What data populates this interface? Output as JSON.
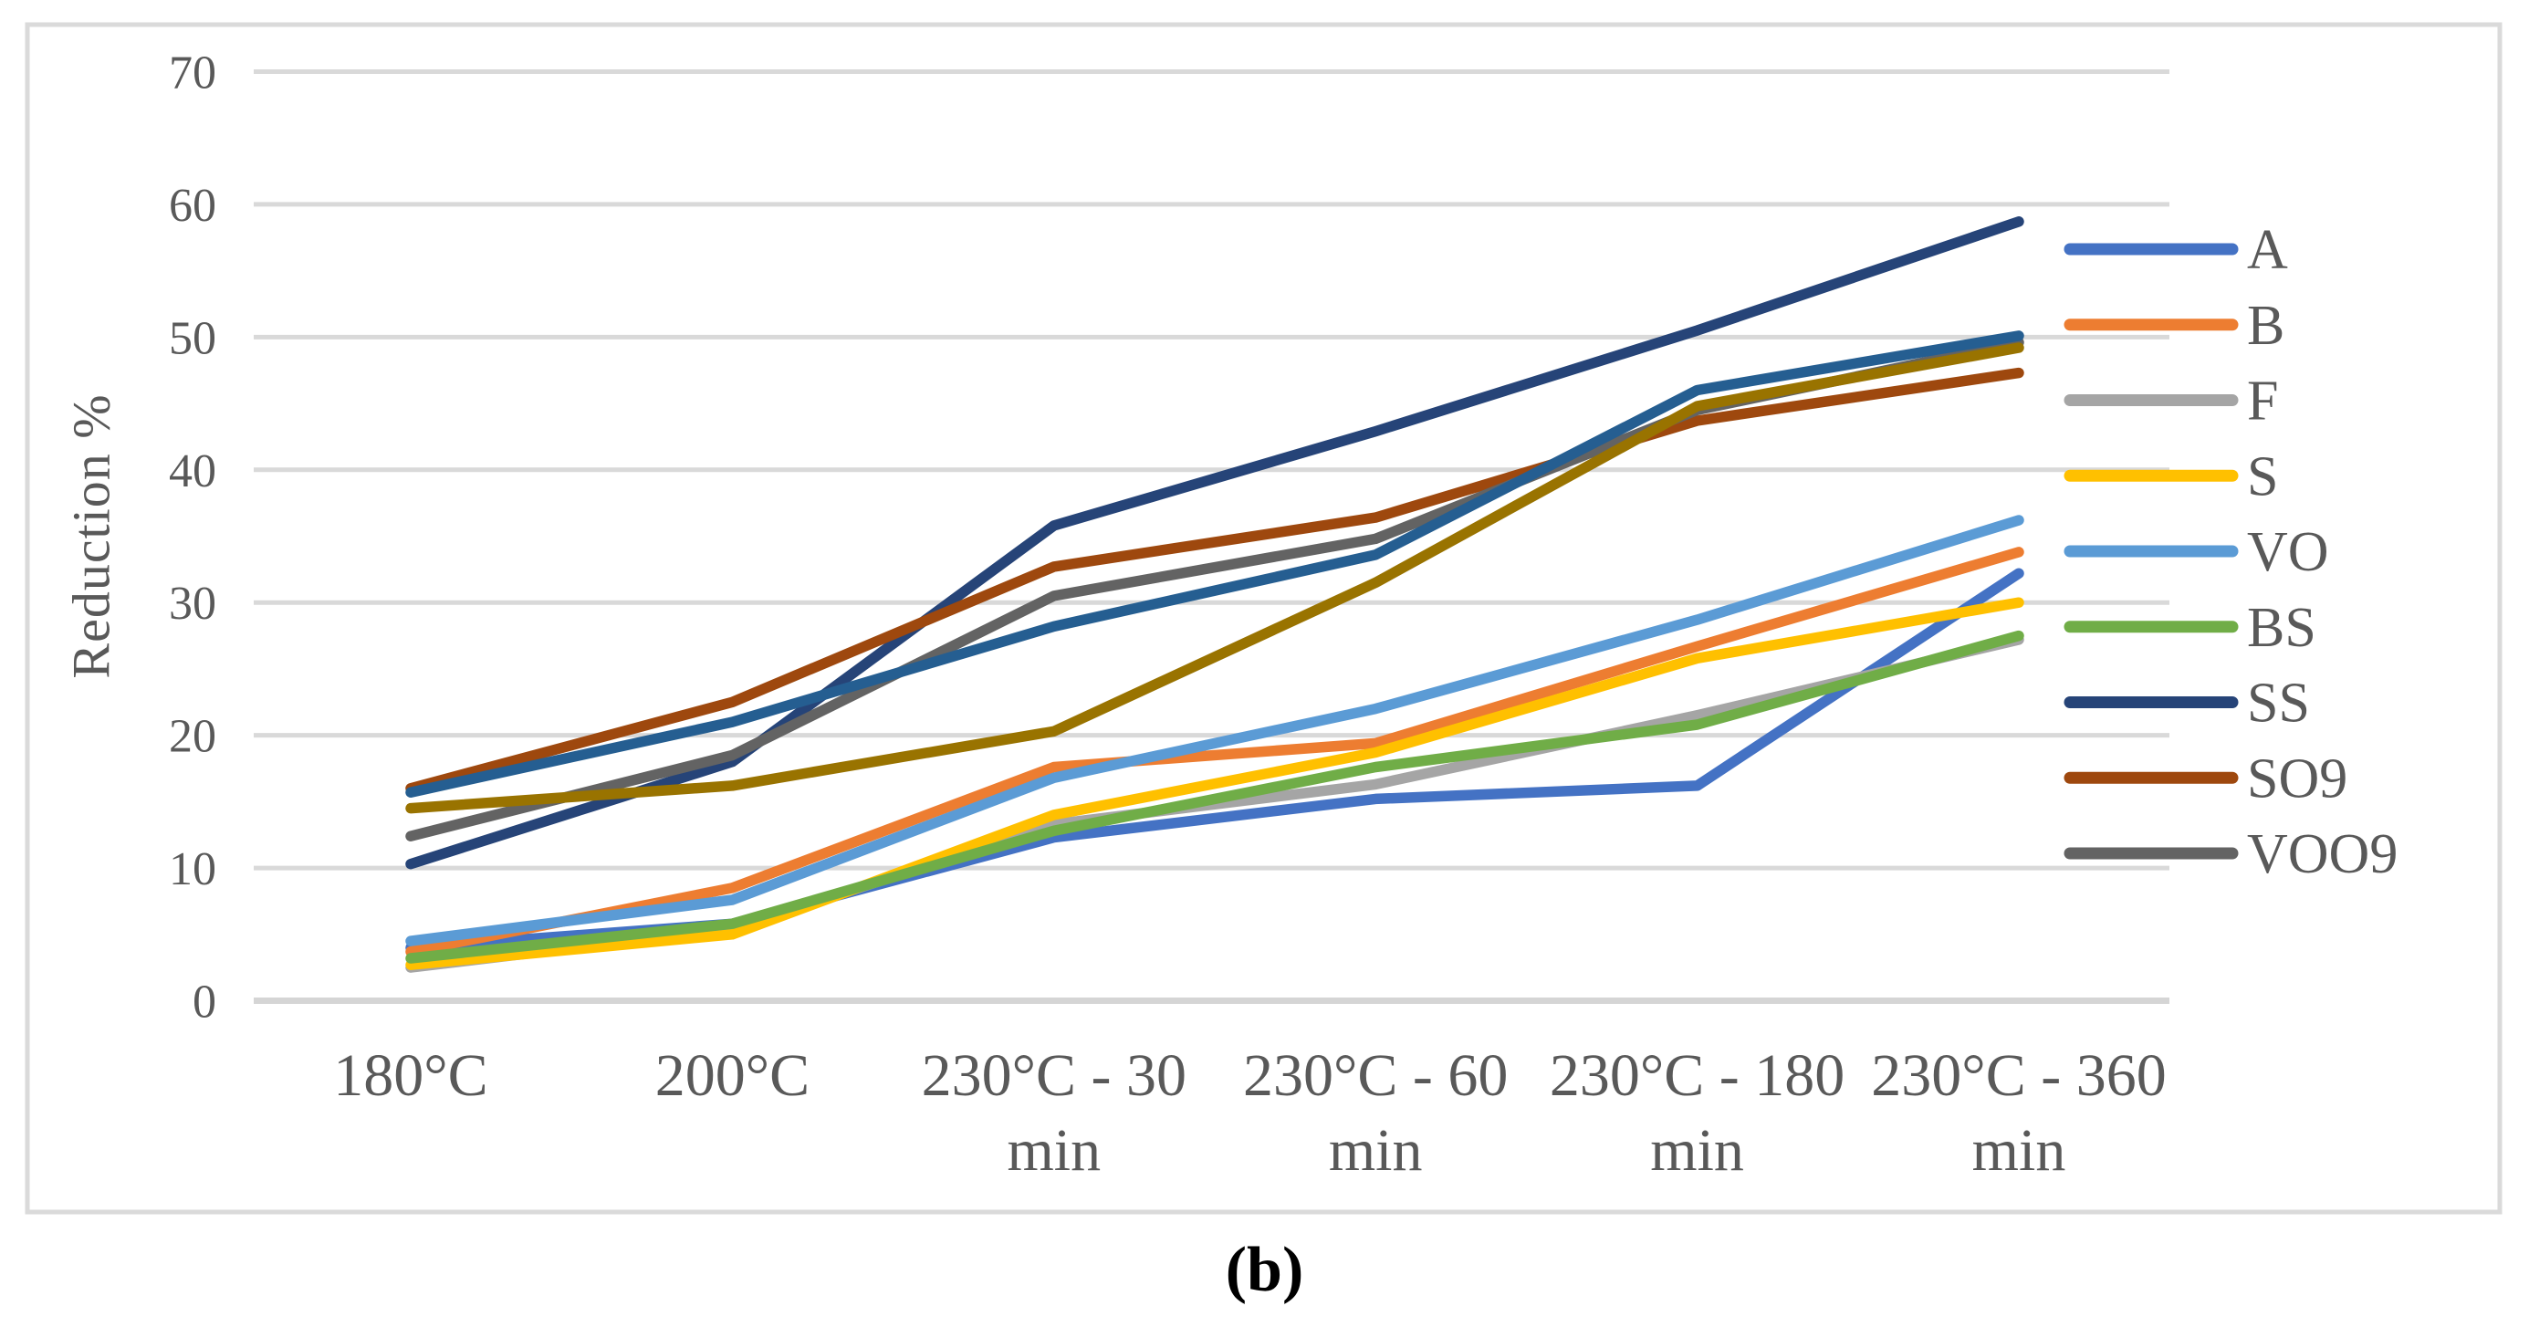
{
  "figure": {
    "caption": "(b)",
    "y_axis_title": "Reduction %",
    "y_ticks": [
      "0",
      "10",
      "20",
      "30",
      "40",
      "50",
      "60",
      "70"
    ],
    "x_labels": [
      [
        "180°C"
      ],
      [
        "200°C"
      ],
      [
        "230°C - 30",
        "min"
      ],
      [
        "230°C - 60",
        "min"
      ],
      [
        "230°C - 180",
        "min"
      ],
      [
        "230°C - 360",
        "min"
      ]
    ],
    "legend": [
      {
        "label": "A",
        "color": "#4472C4"
      },
      {
        "label": "B",
        "color": "#ED7D31"
      },
      {
        "label": "F",
        "color": "#A5A5A5"
      },
      {
        "label": "S",
        "color": "#FFC000"
      },
      {
        "label": "VO",
        "color": "#5B9BD5"
      },
      {
        "label": "BS",
        "color": "#70AD47"
      },
      {
        "label": "SS",
        "color": "#264478"
      },
      {
        "label": "SO9",
        "color": "#9E480E"
      },
      {
        "label": "VOO9",
        "color": "#636363"
      }
    ],
    "colors": {
      "grid": "#D9D9D9",
      "axis_line": "#D5D5D5",
      "frame": "#DADADA",
      "axis_text": "#595959",
      "caption_text": "#000000",
      "background": "#FFFFFF"
    }
  },
  "chart_data": {
    "type": "line",
    "title": "",
    "xlabel": "",
    "ylabel": "Reduction %",
    "ylim": [
      0,
      70
    ],
    "y_tick_step": 10,
    "grid": "horizontal-major",
    "legend_position": "right",
    "categories": [
      "180°C",
      "200°C",
      "230°C - 30 min",
      "230°C - 60 min",
      "230°C - 180 min",
      "230°C - 360 min"
    ],
    "series": [
      {
        "id": "A",
        "name": "A",
        "color": "#4472C4",
        "in_legend": true,
        "values": [
          4.0,
          5.8,
          12.3,
          15.2,
          16.2,
          32.2
        ]
      },
      {
        "id": "B",
        "name": "B",
        "color": "#ED7D31",
        "in_legend": true,
        "values": [
          3.7,
          8.5,
          17.6,
          19.4,
          26.7,
          33.8
        ]
      },
      {
        "id": "F",
        "name": "F",
        "color": "#A5A5A5",
        "in_legend": true,
        "values": [
          2.5,
          5.4,
          13.3,
          16.3,
          21.5,
          27.2
        ]
      },
      {
        "id": "S",
        "name": "S",
        "color": "#FFC000",
        "in_legend": true,
        "values": [
          2.7,
          5.0,
          14.0,
          18.7,
          25.8,
          30.0
        ]
      },
      {
        "id": "VO",
        "name": "VO",
        "color": "#5B9BD5",
        "in_legend": true,
        "values": [
          4.5,
          7.6,
          16.8,
          22.0,
          28.7,
          36.2
        ]
      },
      {
        "id": "BS",
        "name": "BS",
        "color": "#70AD47",
        "in_legend": true,
        "values": [
          3.2,
          5.8,
          12.8,
          17.6,
          20.8,
          27.5
        ]
      },
      {
        "id": "SS",
        "name": "SS",
        "color": "#264478",
        "in_legend": true,
        "values": [
          10.3,
          18.0,
          35.8,
          42.9,
          50.5,
          58.7
        ]
      },
      {
        "id": "SO9",
        "name": "SO9",
        "color": "#9E480E",
        "in_legend": true,
        "values": [
          16.0,
          22.5,
          32.7,
          36.4,
          43.7,
          47.3
        ]
      },
      {
        "id": "VOO9",
        "name": "VOO9",
        "color": "#636363",
        "in_legend": true,
        "values": [
          12.4,
          18.5,
          30.5,
          34.8,
          44.5,
          49.6
        ]
      },
      {
        "id": "extra-dark-gold",
        "name": "(unlabeled dark gold)",
        "color": "#997300",
        "in_legend": false,
        "values": [
          14.5,
          16.2,
          20.3,
          31.5,
          44.8,
          49.2
        ]
      },
      {
        "id": "extra-steel-blue",
        "name": "(unlabeled steel blue)",
        "color": "#255E91",
        "in_legend": false,
        "values": [
          15.7,
          21.0,
          28.2,
          33.6,
          46.0,
          50.1
        ]
      }
    ]
  }
}
